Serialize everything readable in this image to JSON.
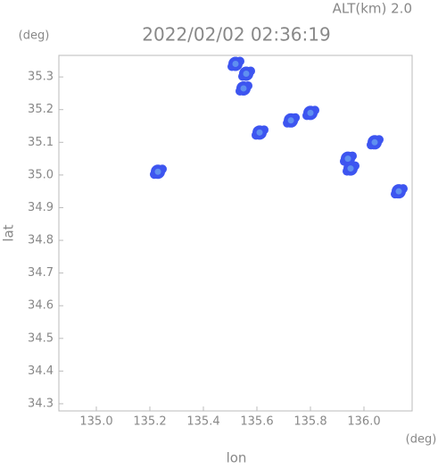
{
  "chart_data": {
    "type": "scatter",
    "header": "ALT(km) 2.0",
    "title": "2022/02/02 02:36:19",
    "x_label": "lon",
    "y_label": "lat",
    "x_unit": "(deg)",
    "y_unit": "(deg)",
    "xlim": [
      134.86,
      136.18
    ],
    "ylim": [
      34.278,
      35.366
    ],
    "xticks": [
      {
        "value": 135.0,
        "label": "135.0"
      },
      {
        "value": 135.2,
        "label": "135.2"
      },
      {
        "value": 135.4,
        "label": "135.4"
      },
      {
        "value": 135.6,
        "label": "135.6"
      },
      {
        "value": 135.8,
        "label": "135.8"
      },
      {
        "value": 136.0,
        "label": "136.0"
      }
    ],
    "yticks": [
      {
        "value": 34.3,
        "label": "34.3"
      },
      {
        "value": 34.4,
        "label": "34.4"
      },
      {
        "value": 34.5,
        "label": "34.5"
      },
      {
        "value": 34.6,
        "label": "34.6"
      },
      {
        "value": 34.7,
        "label": "34.7"
      },
      {
        "value": 34.8,
        "label": "34.8"
      },
      {
        "value": 34.9,
        "label": "34.9"
      },
      {
        "value": 35.0,
        "label": "35.0"
      },
      {
        "value": 35.1,
        "label": "35.1"
      },
      {
        "value": 35.2,
        "label": "35.2"
      },
      {
        "value": 35.3,
        "label": "35.3"
      }
    ],
    "color": "#3d55f0",
    "x": [
      135.52,
      135.56,
      135.55,
      135.727,
      135.8,
      135.94,
      135.95,
      136.04,
      136.13,
      135.23,
      135.61
    ],
    "y": [
      35.34,
      35.31,
      35.265,
      35.167,
      35.19,
      35.05,
      35.02,
      35.1,
      34.95,
      35.01,
      35.13
    ]
  }
}
